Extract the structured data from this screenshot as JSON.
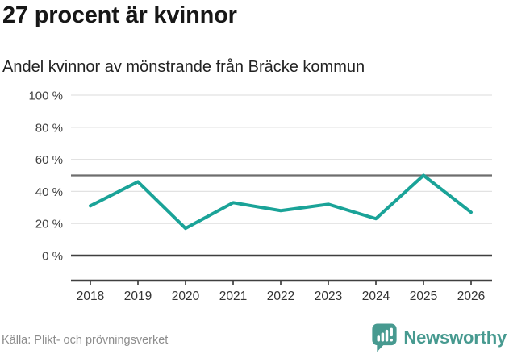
{
  "header": {
    "title": "27 procent är kvinnor",
    "subtitle": "Andel kvinnor av mönstrande från Bräcke kommun"
  },
  "chart_data": {
    "type": "line",
    "title": "27 procent är kvinnor",
    "subtitle": "Andel kvinnor av mönstrande från Bräcke kommun",
    "x": [
      "2018",
      "2019",
      "2020",
      "2021",
      "2022",
      "2023",
      "2024",
      "2025",
      "2026"
    ],
    "series": [
      {
        "name": "Andel kvinnor av mönstrande",
        "values": [
          31,
          46,
          17,
          33,
          28,
          32,
          23,
          50,
          27
        ]
      }
    ],
    "unit": "%",
    "ylim": [
      0,
      100
    ],
    "yticks": [
      {
        "value": 100,
        "label": "100 %"
      },
      {
        "value": 80,
        "label": "80 %"
      },
      {
        "value": 60,
        "label": "60 %"
      },
      {
        "value": 40,
        "label": "40 %"
      },
      {
        "value": 20,
        "label": "20 %"
      },
      {
        "value": 0,
        "label": "0 %"
      }
    ],
    "highlight_gridline": 50,
    "grid": true,
    "legend": "none",
    "line_color": "#1aa398"
  },
  "footer": {
    "source": "Källa: Plikt- och prövningsverket",
    "logo_text": "Newsworthy"
  },
  "colors": {
    "accent": "#1aa398",
    "logo_teal": "#479a90",
    "grid_light": "#e2e2e2",
    "grid_highlight": "#6e6e6e",
    "axis_dark": "#3f3f3f",
    "text_dark": "#171717",
    "text_axis": "#404040",
    "text_muted": "#8d8d8d",
    "background": "#ffffff",
    "icon_bars": "#ffffff"
  }
}
